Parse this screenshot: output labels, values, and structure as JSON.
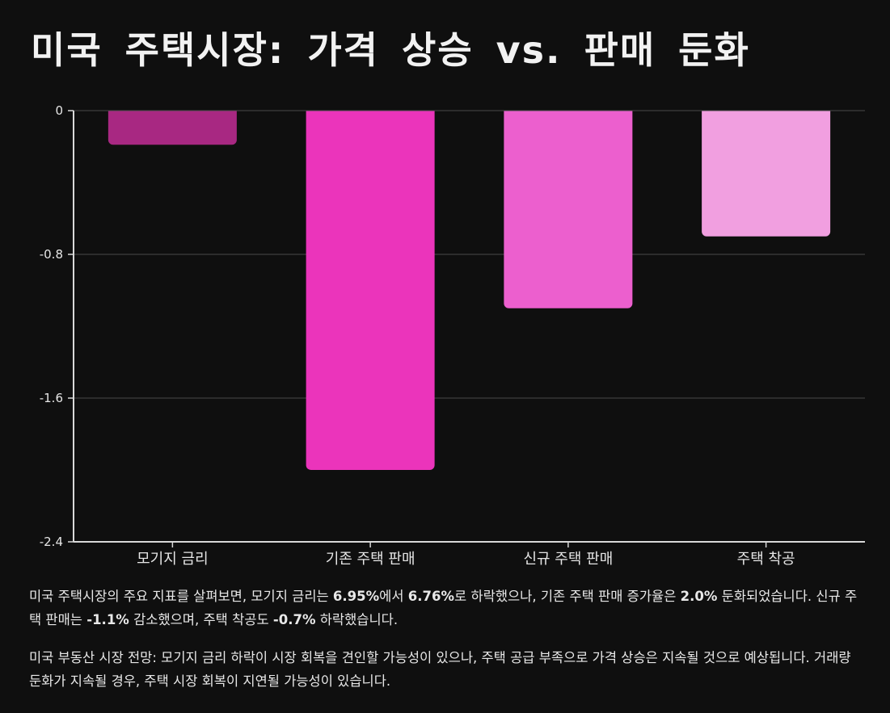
{
  "title": "미국 주택시장: 가격 상승 vs. 판매 둔화",
  "chart_data": {
    "type": "bar",
    "title": "미국 주택시장: 가격 상승 vs. 판매 둔화",
    "categories": [
      "모기지 금리",
      "기존 주택 판매",
      "신규 주택 판매",
      "주택 착공"
    ],
    "values": [
      -0.19,
      -2.0,
      -1.1,
      -0.7
    ],
    "ylim": [
      -2.4,
      0
    ],
    "yticks": [
      0,
      -0.8,
      -1.6,
      -2.4
    ],
    "ytick_labels": [
      "0",
      "-0.8",
      "-1.6",
      "-2.4"
    ],
    "grid": true,
    "colors": [
      "#a82882",
      "#eb34bb",
      "#ec5fce",
      "#f19fe0"
    ]
  },
  "colors": {
    "background": "#0f0f0f",
    "gridline": "#4a4a4a",
    "axis": "#d8d8d8"
  },
  "notes": {
    "p1": {
      "t1": "미국 주택시장의 주요 지표를 살펴보면, 모기지 금리는 ",
      "b1": "6.95%",
      "t2": "에서 ",
      "b2": "6.76%",
      "t3": "로 하락했으나, 기존 주택 판매 증가율은 ",
      "b3": "2.0%",
      "t4": " 둔화되었습니다. 신규 주택 판매는 ",
      "b4": "-1.1%",
      "t5": " 감소했으며, 주택 착공도 ",
      "b5": "-0.7%",
      "t6": " 하락했습니다."
    },
    "p2": "미국 부동산 시장 전망: 모기지 금리 하락이 시장 회복을 견인할 가능성이 있으나, 주택 공급 부족으로 가격 상승은 지속될 것으로 예상됩니다. 거래량 둔화가 지속될 경우, 주택 시장 회복이 지연될 가능성이 있습니다."
  }
}
